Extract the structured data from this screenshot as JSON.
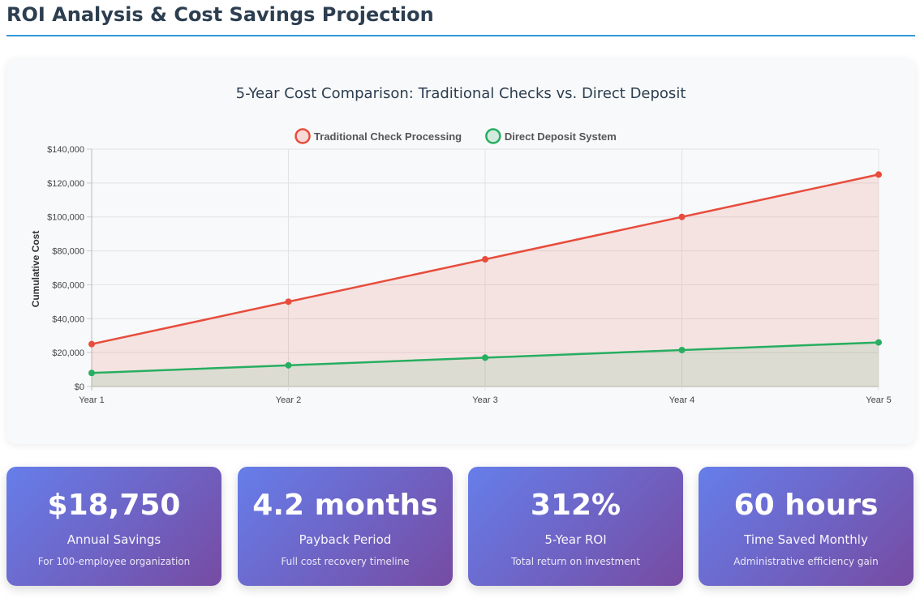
{
  "page": {
    "title": "ROI Analysis & Cost Savings Projection"
  },
  "colors": {
    "accent": "#3498db",
    "traditional": "#e74c3c",
    "direct": "#27ae60",
    "card_gradient_start": "#667eea",
    "card_gradient_end": "#764ba2"
  },
  "chart_data": {
    "type": "line",
    "title": "5-Year Cost Comparison: Traditional Checks vs. Direct Deposit",
    "xlabel": "",
    "ylabel": "Cumulative Cost",
    "categories": [
      "Year 1",
      "Year 2",
      "Year 3",
      "Year 4",
      "Year 5"
    ],
    "ylim": [
      0,
      140000
    ],
    "yticks": [
      0,
      20000,
      40000,
      60000,
      80000,
      100000,
      120000,
      140000
    ],
    "ytick_labels": [
      "$0",
      "$20,000",
      "$40,000",
      "$60,000",
      "$80,000",
      "$100,000",
      "$120,000",
      "$140,000"
    ],
    "legend_position": "top-center",
    "grid": true,
    "filled": true,
    "series": [
      {
        "name": "Traditional Check Processing",
        "color": "#e74c3c",
        "values": [
          25000,
          50000,
          75000,
          100000,
          125000
        ]
      },
      {
        "name": "Direct Deposit System",
        "color": "#27ae60",
        "values": [
          8000,
          12500,
          17000,
          21500,
          26000
        ]
      }
    ]
  },
  "stats": [
    {
      "value": "$18,750",
      "label": "Annual Savings",
      "sub": "For 100-employee organization"
    },
    {
      "value": "4.2 months",
      "label": "Payback Period",
      "sub": "Full cost recovery timeline"
    },
    {
      "value": "312%",
      "label": "5-Year ROI",
      "sub": "Total return on investment"
    },
    {
      "value": "60 hours",
      "label": "Time Saved Monthly",
      "sub": "Administrative efficiency gain"
    }
  ]
}
